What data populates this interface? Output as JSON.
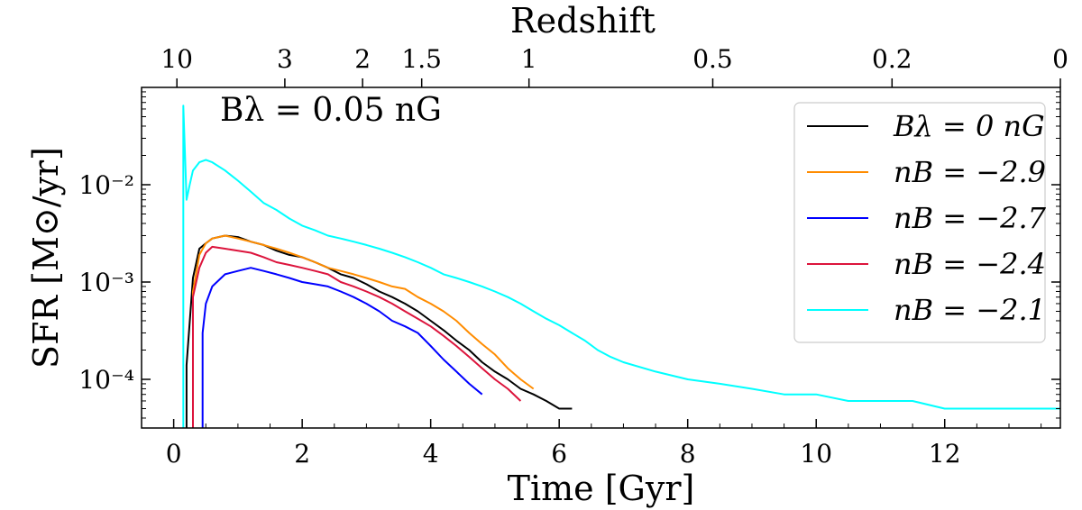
{
  "chart_data": {
    "type": "line",
    "xlabel": "Time [Gyr]",
    "ylabel": "SFR [M⊙/yr]",
    "top_axis_label": "Redshift",
    "xlim": [
      -0.5,
      13.8
    ],
    "ylim_log10": [
      -4.5,
      -1.0
    ],
    "y_scale": "log",
    "x_ticks": [
      0,
      2,
      4,
      6,
      8,
      10,
      12
    ],
    "x_tick_labels": [
      "0",
      "2",
      "4",
      "6",
      "8",
      "10",
      "12"
    ],
    "y_ticks_log10": [
      -4,
      -3,
      -2
    ],
    "y_tick_labels": [
      "10⁻⁴",
      "10⁻³",
      "10⁻²"
    ],
    "redshift_ticks": [
      {
        "label": "10",
        "time": 0.05
      },
      {
        "label": "3",
        "time": 1.73
      },
      {
        "label": "2",
        "time": 2.94
      },
      {
        "label": "1.5",
        "time": 3.86
      },
      {
        "label": "1",
        "time": 5.53
      },
      {
        "label": "0.5",
        "time": 8.39
      },
      {
        "label": "0.2",
        "time": 11.18
      },
      {
        "label": "0",
        "time": 13.8
      }
    ],
    "annotation": "Bλ = 0.05 nG",
    "legend": {
      "location": "top-right"
    },
    "series": [
      {
        "name": "Bλ = 0 nG",
        "color": "#000000",
        "t": [
          0.2,
          0.3,
          0.4,
          0.5,
          0.6,
          0.8,
          1.0,
          1.2,
          1.4,
          1.6,
          1.8,
          2.0,
          2.2,
          2.4,
          2.6,
          2.8,
          3.0,
          3.2,
          3.4,
          3.6,
          3.8,
          4.0,
          4.2,
          4.4,
          4.6,
          4.8,
          5.0,
          5.2,
          5.4,
          5.6,
          5.8,
          6.0,
          6.2
        ],
        "sfr": [
          0.00014,
          0.0011,
          0.0022,
          0.0025,
          0.0028,
          0.003,
          0.0029,
          0.0026,
          0.0024,
          0.0021,
          0.0019,
          0.0018,
          0.0016,
          0.0014,
          0.0012,
          0.0011,
          0.00095,
          0.0008,
          0.0007,
          0.0006,
          0.0005,
          0.0004,
          0.00032,
          0.00025,
          0.0002,
          0.00015,
          0.00012,
          0.0001,
          8e-05,
          7e-05,
          6e-05,
          5e-05,
          5e-05
        ]
      },
      {
        "name": "nB = −2.9",
        "color": "#ff8c00",
        "t": [
          0.3,
          0.4,
          0.5,
          0.6,
          0.8,
          1.0,
          1.2,
          1.4,
          1.6,
          1.8,
          2.0,
          2.2,
          2.4,
          2.6,
          2.8,
          3.0,
          3.2,
          3.4,
          3.6,
          3.8,
          4.0,
          4.2,
          4.4,
          4.6,
          4.8,
          5.0,
          5.2,
          5.4,
          5.6
        ],
        "sfr": [
          0.0008,
          0.0019,
          0.0025,
          0.0028,
          0.003,
          0.0028,
          0.0026,
          0.0024,
          0.0022,
          0.002,
          0.0018,
          0.0016,
          0.0014,
          0.0013,
          0.0012,
          0.0011,
          0.001,
          0.0009,
          0.00085,
          0.0007,
          0.0006,
          0.0005,
          0.0004,
          0.0003,
          0.00023,
          0.00018,
          0.00013,
          0.0001,
          8e-05
        ]
      },
      {
        "name": "nB = −2.7",
        "color": "#0000ff",
        "t": [
          0.45,
          0.5,
          0.6,
          0.8,
          1.0,
          1.2,
          1.4,
          1.6,
          1.8,
          2.0,
          2.2,
          2.4,
          2.6,
          2.8,
          3.0,
          3.2,
          3.4,
          3.6,
          3.8,
          4.0,
          4.2,
          4.4,
          4.6,
          4.8
        ],
        "sfr": [
          0.0003,
          0.0006,
          0.0009,
          0.0012,
          0.0013,
          0.0014,
          0.0013,
          0.0012,
          0.0011,
          0.001,
          0.00095,
          0.0009,
          0.0008,
          0.0007,
          0.0006,
          0.0005,
          0.0004,
          0.00035,
          0.0003,
          0.00022,
          0.00016,
          0.00012,
          9e-05,
          7e-05
        ]
      },
      {
        "name": "nB = −2.4",
        "color": "#dc143c",
        "t": [
          0.3,
          0.4,
          0.5,
          0.6,
          0.8,
          1.0,
          1.2,
          1.4,
          1.6,
          1.8,
          2.0,
          2.2,
          2.4,
          2.6,
          2.8,
          3.0,
          3.2,
          3.4,
          3.6,
          3.8,
          4.0,
          4.2,
          4.4,
          4.6,
          4.8,
          5.0,
          5.2,
          5.4
        ],
        "sfr": [
          0.0007,
          0.0014,
          0.002,
          0.0023,
          0.0022,
          0.0021,
          0.002,
          0.0018,
          0.0016,
          0.0015,
          0.0014,
          0.0013,
          0.0012,
          0.001,
          0.0009,
          0.0008,
          0.0007,
          0.0006,
          0.0005,
          0.00042,
          0.00035,
          0.00028,
          0.00022,
          0.00017,
          0.00013,
          0.0001,
          8e-05,
          6e-05
        ]
      },
      {
        "name": "nB = −2.1",
        "color": "#00ffff",
        "t": [
          0.15,
          0.2,
          0.25,
          0.3,
          0.4,
          0.5,
          0.6,
          0.8,
          1.0,
          1.2,
          1.4,
          1.6,
          1.8,
          2.0,
          2.2,
          2.4,
          2.6,
          2.8,
          3.0,
          3.2,
          3.4,
          3.6,
          3.8,
          4.0,
          4.2,
          4.4,
          4.6,
          4.8,
          5.0,
          5.2,
          5.4,
          5.6,
          5.8,
          6.0,
          6.2,
          6.4,
          6.6,
          6.8,
          7.0,
          7.5,
          8.0,
          8.5,
          9.0,
          9.5,
          10.0,
          10.5,
          11.0,
          11.5,
          12.0,
          12.5,
          13.0,
          13.5,
          13.8
        ],
        "sfr": [
          0.065,
          0.007,
          0.01,
          0.014,
          0.017,
          0.018,
          0.017,
          0.014,
          0.011,
          0.0085,
          0.0065,
          0.0055,
          0.0045,
          0.0038,
          0.0034,
          0.003,
          0.0028,
          0.0026,
          0.0024,
          0.0022,
          0.002,
          0.0018,
          0.0016,
          0.0014,
          0.0012,
          0.0011,
          0.001,
          0.0009,
          0.0008,
          0.0007,
          0.0006,
          0.0005,
          0.00042,
          0.00036,
          0.0003,
          0.00025,
          0.0002,
          0.00017,
          0.00015,
          0.00012,
          0.0001,
          9e-05,
          8e-05,
          7e-05,
          7e-05,
          6e-05,
          6e-05,
          6e-05,
          5e-05,
          5e-05,
          5e-05,
          5e-05,
          5e-05
        ]
      }
    ]
  }
}
